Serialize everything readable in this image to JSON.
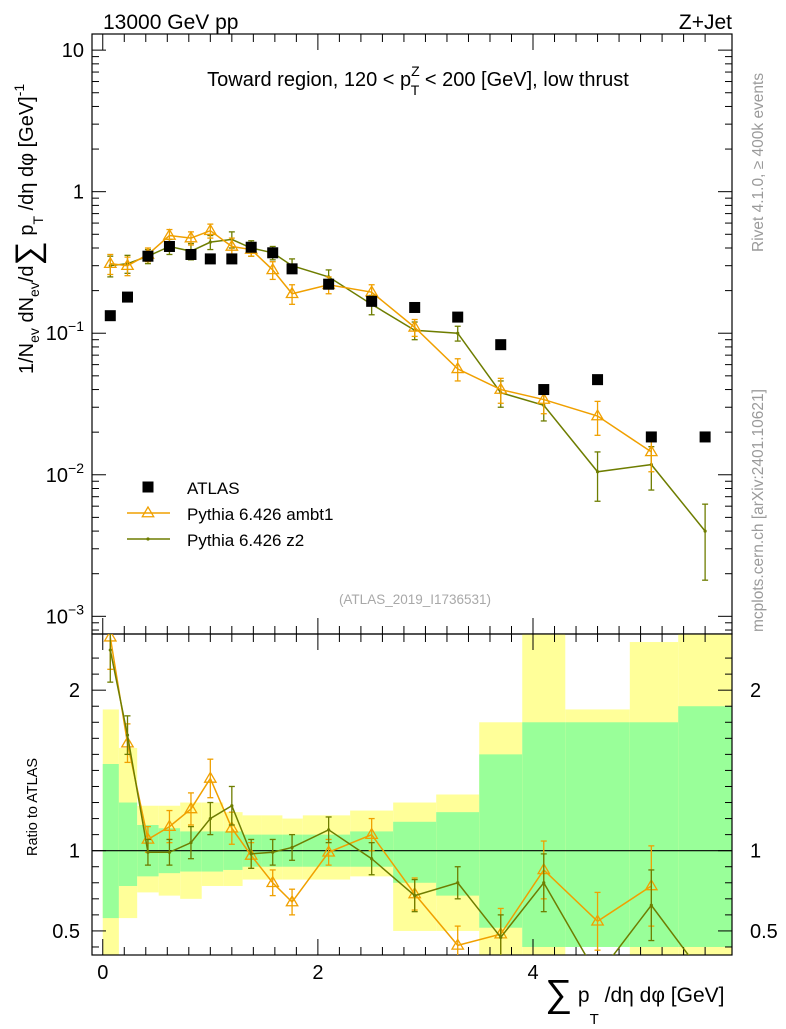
{
  "header": {
    "left": "13000 GeV pp",
    "right": "Z+Jet"
  },
  "side": {
    "rivet": "Rivet 4.1.0, ≥ 400k events",
    "site": "mcplots.cern.ch [arXiv:2401.10621]"
  },
  "chart_data": [
    {
      "type": "scatter",
      "panel": "main",
      "title": "Toward region, 120 < p_T^Z < 200 [GeV], low thrust",
      "title_parts": {
        "a": "Toward region, 120 < p",
        "sup": "Z",
        "sub": "T",
        "b": " < 200 [GeV], low thrust"
      },
      "ylabel": "1/N_ev dN_ev/d∑ p_T /dη dφ  [GeV]^-1",
      "ylabel_parts": {
        "a": "1/N",
        "a_sub": "ev",
        "b": " dN",
        "b_sub": "ev",
        "c": "/d",
        "sigma": "∑",
        "d": " p",
        "d_sub": "T",
        "e": " /dη dφ  [GeV]",
        "e_sup": "-1"
      },
      "yscale": "log",
      "ylim": [
        0.00075,
        13
      ],
      "xlim": [
        -0.1,
        5.85
      ],
      "yticks": [
        {
          "v": 10,
          "base": "10",
          "exp": ""
        },
        {
          "v": 1,
          "base": "1",
          "exp": ""
        },
        {
          "v": 0.1,
          "base": "10",
          "exp": "−1"
        },
        {
          "v": 0.01,
          "base": "10",
          "exp": "−2"
        },
        {
          "v": 0.001,
          "base": "10",
          "exp": "−3"
        }
      ],
      "watermark": "(ATLAS_2019_I1736531)",
      "legend": [
        "ATLAS",
        "Pythia 6.426 ambt1",
        "Pythia 6.426 z2"
      ],
      "legend_position": "bottom-left",
      "series": [
        {
          "name": "ATLAS",
          "color": "#000000",
          "x": [
            0.07,
            0.23,
            0.42,
            0.62,
            0.82,
            1.0,
            1.2,
            1.38,
            1.58,
            1.76,
            2.1,
            2.5,
            2.9,
            3.3,
            3.7,
            4.1,
            4.6,
            5.1,
            5.6
          ],
          "y": [
            0.133,
            0.18,
            0.35,
            0.41,
            0.36,
            0.335,
            0.335,
            0.405,
            0.37,
            0.285,
            0.222,
            0.168,
            0.152,
            0.13,
            0.083,
            0.04,
            0.047,
            0.0185,
            0.0185
          ]
        },
        {
          "name": "Pythia 6.426 ambt1",
          "color": "#f0a000",
          "x": [
            0.07,
            0.23,
            0.42,
            0.62,
            0.82,
            1.0,
            1.2,
            1.38,
            1.58,
            1.76,
            2.1,
            2.5,
            2.9,
            3.3,
            3.7,
            4.1,
            4.6,
            5.1
          ],
          "y": [
            0.31,
            0.3,
            0.36,
            0.49,
            0.47,
            0.53,
            0.41,
            0.39,
            0.28,
            0.19,
            0.22,
            0.195,
            0.11,
            0.056,
            0.04,
            0.034,
            0.026,
            0.0145
          ],
          "yerr": [
            0.05,
            0.045,
            0.04,
            0.05,
            0.05,
            0.06,
            0.06,
            0.04,
            0.04,
            0.03,
            0.03,
            0.025,
            0.015,
            0.01,
            0.008,
            0.007,
            0.007,
            0.004
          ]
        },
        {
          "name": "Pythia 6.426 z2",
          "color": "#6e7d00",
          "x": [
            0.07,
            0.23,
            0.42,
            0.62,
            0.82,
            1.0,
            1.2,
            1.38,
            1.58,
            1.76,
            2.1,
            2.5,
            2.9,
            3.3,
            3.7,
            4.1,
            4.6,
            5.1,
            5.6
          ],
          "y": [
            0.3,
            0.31,
            0.35,
            0.41,
            0.38,
            0.44,
            0.46,
            0.4,
            0.37,
            0.3,
            0.25,
            0.16,
            0.105,
            0.1,
            0.038,
            0.031,
            0.0105,
            0.0118,
            0.004
          ],
          "yerr": [
            0.05,
            0.045,
            0.04,
            0.05,
            0.05,
            0.05,
            0.06,
            0.05,
            0.04,
            0.035,
            0.03,
            0.025,
            0.015,
            0.012,
            0.008,
            0.007,
            0.004,
            0.004,
            0.0022
          ]
        }
      ]
    },
    {
      "type": "line",
      "panel": "ratio",
      "ylabel": "Ratio to ATLAS",
      "xlabel": "∑ p_T /dη dφ [GeV]",
      "xlabel_parts": {
        "sigma": "∑",
        "a": " p",
        "a_sub": "T",
        "b": " /dη dφ [GeV]"
      },
      "ylim": [
        0.35,
        2.35
      ],
      "xlim": [
        -0.1,
        5.85
      ],
      "yticks": [
        0.5,
        1,
        2
      ],
      "ytick_labels": [
        "0.5",
        "1",
        "2"
      ],
      "xticks": [
        0,
        2,
        4
      ],
      "xtick_labels": [
        "0",
        "2",
        "4"
      ],
      "bands": {
        "edges": [
          0.0,
          0.15,
          0.32,
          0.52,
          0.72,
          0.92,
          1.12,
          1.3,
          1.48,
          1.67,
          1.86,
          2.3,
          2.7,
          3.1,
          3.5,
          3.9,
          4.3,
          4.9,
          5.35,
          5.85
        ],
        "inner_lo": [
          0.58,
          0.78,
          0.84,
          0.86,
          0.87,
          0.87,
          0.88,
          0.9,
          0.9,
          0.9,
          0.9,
          0.9,
          0.8,
          0.72,
          0.52,
          0.4,
          0.4,
          0.4,
          0.4
        ],
        "inner_hi": [
          1.54,
          1.3,
          1.16,
          1.14,
          1.12,
          1.12,
          1.12,
          1.1,
          1.1,
          1.1,
          1.1,
          1.12,
          1.18,
          1.24,
          1.6,
          1.8,
          1.8,
          1.8,
          1.9
        ],
        "outer_lo": [
          0.35,
          0.58,
          0.74,
          0.72,
          0.7,
          0.78,
          0.78,
          0.82,
          0.82,
          0.82,
          0.82,
          0.84,
          0.5,
          0.5,
          0.35,
          0.35,
          0.5,
          0.35,
          0.35
        ],
        "outer_hi": [
          1.88,
          1.64,
          1.28,
          1.28,
          1.3,
          1.3,
          1.24,
          1.22,
          1.22,
          1.2,
          1.22,
          1.25,
          1.3,
          1.35,
          1.8,
          2.35,
          1.88,
          2.3,
          2.35
        ],
        "inner_color": "#99ff99",
        "outer_color": "#ffff99"
      },
      "series": [
        {
          "name": "Pythia 6.426 ambt1 / ATLAS",
          "color": "#f0a000",
          "x": [
            0.07,
            0.23,
            0.42,
            0.62,
            0.82,
            1.0,
            1.2,
            1.38,
            1.58,
            1.76,
            2.1,
            2.5,
            2.9,
            3.3,
            3.7,
            4.1,
            4.6,
            5.1
          ],
          "y": [
            2.33,
            1.67,
            1.07,
            1.15,
            1.26,
            1.45,
            1.14,
            0.97,
            0.8,
            0.68,
            0.99,
            1.1,
            0.73,
            0.41,
            0.48,
            0.88,
            0.56,
            0.78
          ],
          "yerr": [
            0.2,
            0.12,
            0.08,
            0.1,
            0.1,
            0.12,
            0.1,
            0.08,
            0.08,
            0.08,
            0.08,
            0.1,
            0.1,
            0.12,
            0.16,
            0.18,
            0.18,
            0.25
          ]
        },
        {
          "name": "Pythia 6.426 z2 / ATLAS",
          "color": "#6e7d00",
          "x": [
            0.07,
            0.23,
            0.42,
            0.62,
            0.82,
            1.0,
            1.2,
            1.38,
            1.58,
            1.76,
            2.1,
            2.5,
            2.9,
            3.3,
            3.7,
            4.1,
            4.6,
            5.1,
            5.6
          ],
          "y": [
            2.25,
            1.72,
            0.99,
            0.99,
            1.05,
            1.2,
            1.28,
            0.98,
            0.99,
            1.02,
            1.13,
            0.95,
            0.72,
            0.8,
            0.46,
            0.8,
            0.22,
            0.66,
            0.21
          ],
          "yerr": [
            0.2,
            0.12,
            0.08,
            0.08,
            0.1,
            0.1,
            0.12,
            0.09,
            0.08,
            0.08,
            0.08,
            0.1,
            0.1,
            0.1,
            0.14,
            0.18,
            0.1,
            0.22,
            0.1
          ]
        }
      ]
    }
  ]
}
